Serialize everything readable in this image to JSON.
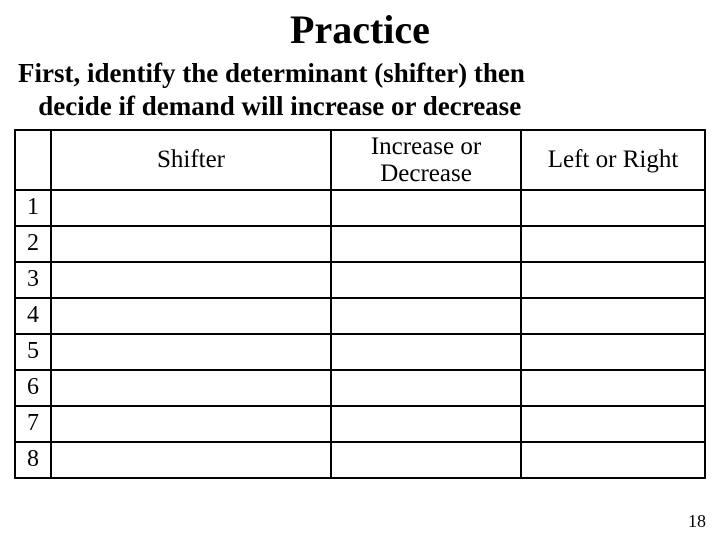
{
  "slide": {
    "title": "Practice",
    "subtitle_line1": "First, identify the determinant (shifter) then",
    "subtitle_line2": "decide if demand will increase or decrease",
    "page_number": "18"
  },
  "table": {
    "columns": {
      "num": "",
      "shifter": "Shifter",
      "incdec_line1": "Increase or",
      "incdec_line2": "Decrease",
      "leftright": "Left or Right"
    },
    "rows": [
      {
        "num": "1",
        "shifter": "",
        "incdec": "",
        "leftright": ""
      },
      {
        "num": "2",
        "shifter": "",
        "incdec": "",
        "leftright": ""
      },
      {
        "num": "3",
        "shifter": "",
        "incdec": "",
        "leftright": ""
      },
      {
        "num": "4",
        "shifter": "",
        "incdec": "",
        "leftright": ""
      },
      {
        "num": "5",
        "shifter": "",
        "incdec": "",
        "leftright": ""
      },
      {
        "num": "6",
        "shifter": "",
        "incdec": "",
        "leftright": ""
      },
      {
        "num": "7",
        "shifter": "",
        "incdec": "",
        "leftright": ""
      },
      {
        "num": "8",
        "shifter": "",
        "incdec": "",
        "leftright": ""
      }
    ],
    "border_color": "#000000",
    "background_color": "#ffffff",
    "header_fontsize": 25,
    "cell_fontsize": 24
  }
}
